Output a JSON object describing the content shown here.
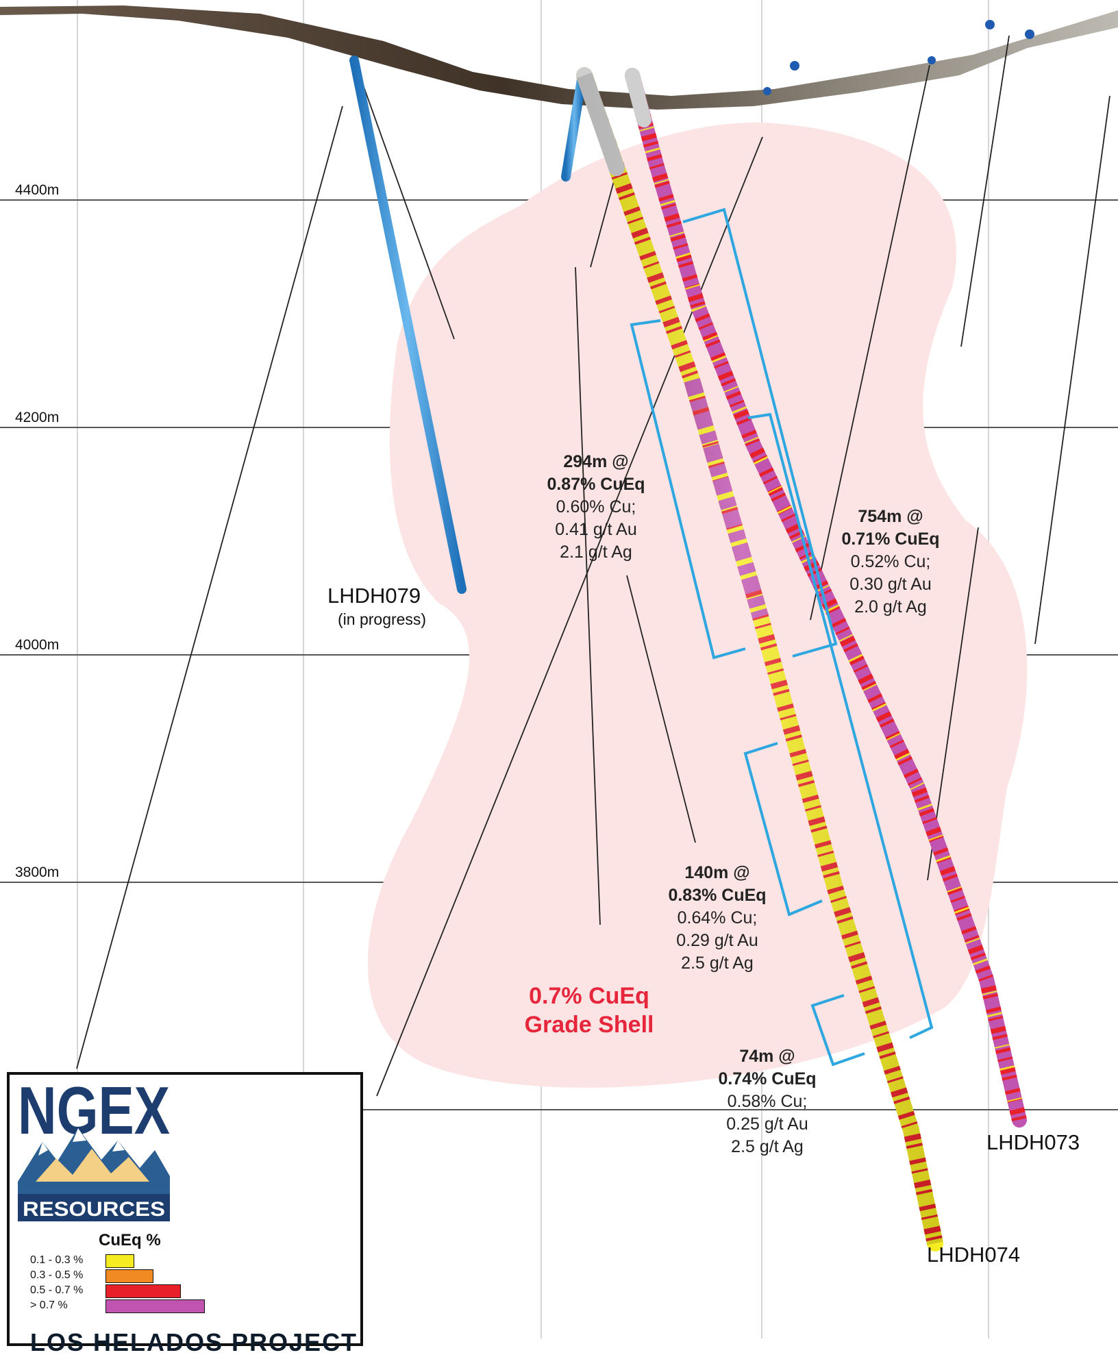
{
  "elevations": [
    "4400m",
    "4200m",
    "4000m",
    "3800m"
  ],
  "holes": {
    "lhdh079": {
      "name": "LHDH079",
      "status": "(in progress)"
    },
    "lhdh073": {
      "name": "LHDH073"
    },
    "lhdh074": {
      "name": "LHDH074"
    }
  },
  "intercepts": [
    {
      "length": "294m @",
      "cueq": "0.87% CuEq",
      "cu": "0.60% Cu;",
      "au": "0.41 g/t Au",
      "ag": "2.1 g/t Ag"
    },
    {
      "length": "754m @",
      "cueq": "0.71% CuEq",
      "cu": "0.52% Cu;",
      "au": "0.30 g/t Au",
      "ag": "2.0 g/t Ag"
    },
    {
      "length": "140m @",
      "cueq": "0.83% CuEq",
      "cu": "0.64% Cu;",
      "au": "0.29 g/t Au",
      "ag": "2.5 g/t Ag"
    },
    {
      "length": "74m @",
      "cueq": "0.74% CuEq",
      "cu": "0.58% Cu;",
      "au": "0.25 g/t Au",
      "ag": "2.5 g/t Ag"
    }
  ],
  "grade_shell": {
    "line1": "0.7% CuEq",
    "line2": "Grade Shell",
    "color": "#e6263a"
  },
  "legend": {
    "title": "CuEq %",
    "items": [
      {
        "label": "0.1 - 0.3 %",
        "color": "#f5ec21"
      },
      {
        "label": "0.3 - 0.5 %",
        "color": "#f18a22"
      },
      {
        "label": "0.5 - 0.7 %",
        "color": "#e8202a"
      },
      {
        "label": "> 0.7 %",
        "color": "#c154b0"
      }
    ]
  },
  "logo": {
    "name": "NGEX",
    "sub": "RESOURCES"
  },
  "project_title": "LOS HELADOS PROJECT"
}
